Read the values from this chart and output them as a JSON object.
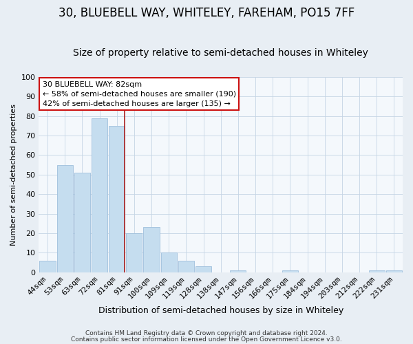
{
  "title": "30, BLUEBELL WAY, WHITELEY, FAREHAM, PO15 7FF",
  "subtitle": "Size of property relative to semi-detached houses in Whiteley",
  "xlabel": "Distribution of semi-detached houses by size in Whiteley",
  "ylabel": "Number of semi-detached properties",
  "categories": [
    "44sqm",
    "53sqm",
    "63sqm",
    "72sqm",
    "81sqm",
    "91sqm",
    "100sqm",
    "109sqm",
    "119sqm",
    "128sqm",
    "138sqm",
    "147sqm",
    "156sqm",
    "166sqm",
    "175sqm",
    "184sqm",
    "194sqm",
    "203sqm",
    "212sqm",
    "222sqm",
    "231sqm"
  ],
  "values": [
    6,
    55,
    51,
    79,
    75,
    20,
    23,
    10,
    6,
    3,
    0,
    1,
    0,
    0,
    1,
    0,
    0,
    0,
    0,
    1,
    1
  ],
  "bar_color": "#c5ddef",
  "bar_edge_color": "#a0c0dc",
  "highlight_index": 4,
  "highlight_line_color": "#aa2020",
  "annotation_title": "30 BLUEBELL WAY: 82sqm",
  "annotation_line1": "← 58% of semi-detached houses are smaller (190)",
  "annotation_line2": "42% of semi-detached houses are larger (135) →",
  "annotation_box_color": "#ffffff",
  "annotation_border_color": "#cc1111",
  "ylim": [
    0,
    100
  ],
  "yticks": [
    0,
    10,
    20,
    30,
    40,
    50,
    60,
    70,
    80,
    90,
    100
  ],
  "footer1": "Contains HM Land Registry data © Crown copyright and database right 2024.",
  "footer2": "Contains public sector information licensed under the Open Government Licence v3.0.",
  "bg_color": "#e8eef4",
  "plot_bg_color": "#f4f8fc",
  "grid_color": "#c5d5e5",
  "title_fontsize": 12,
  "subtitle_fontsize": 10,
  "xlabel_fontsize": 9,
  "ylabel_fontsize": 8,
  "tick_fontsize": 8,
  "annotation_fontsize": 8
}
